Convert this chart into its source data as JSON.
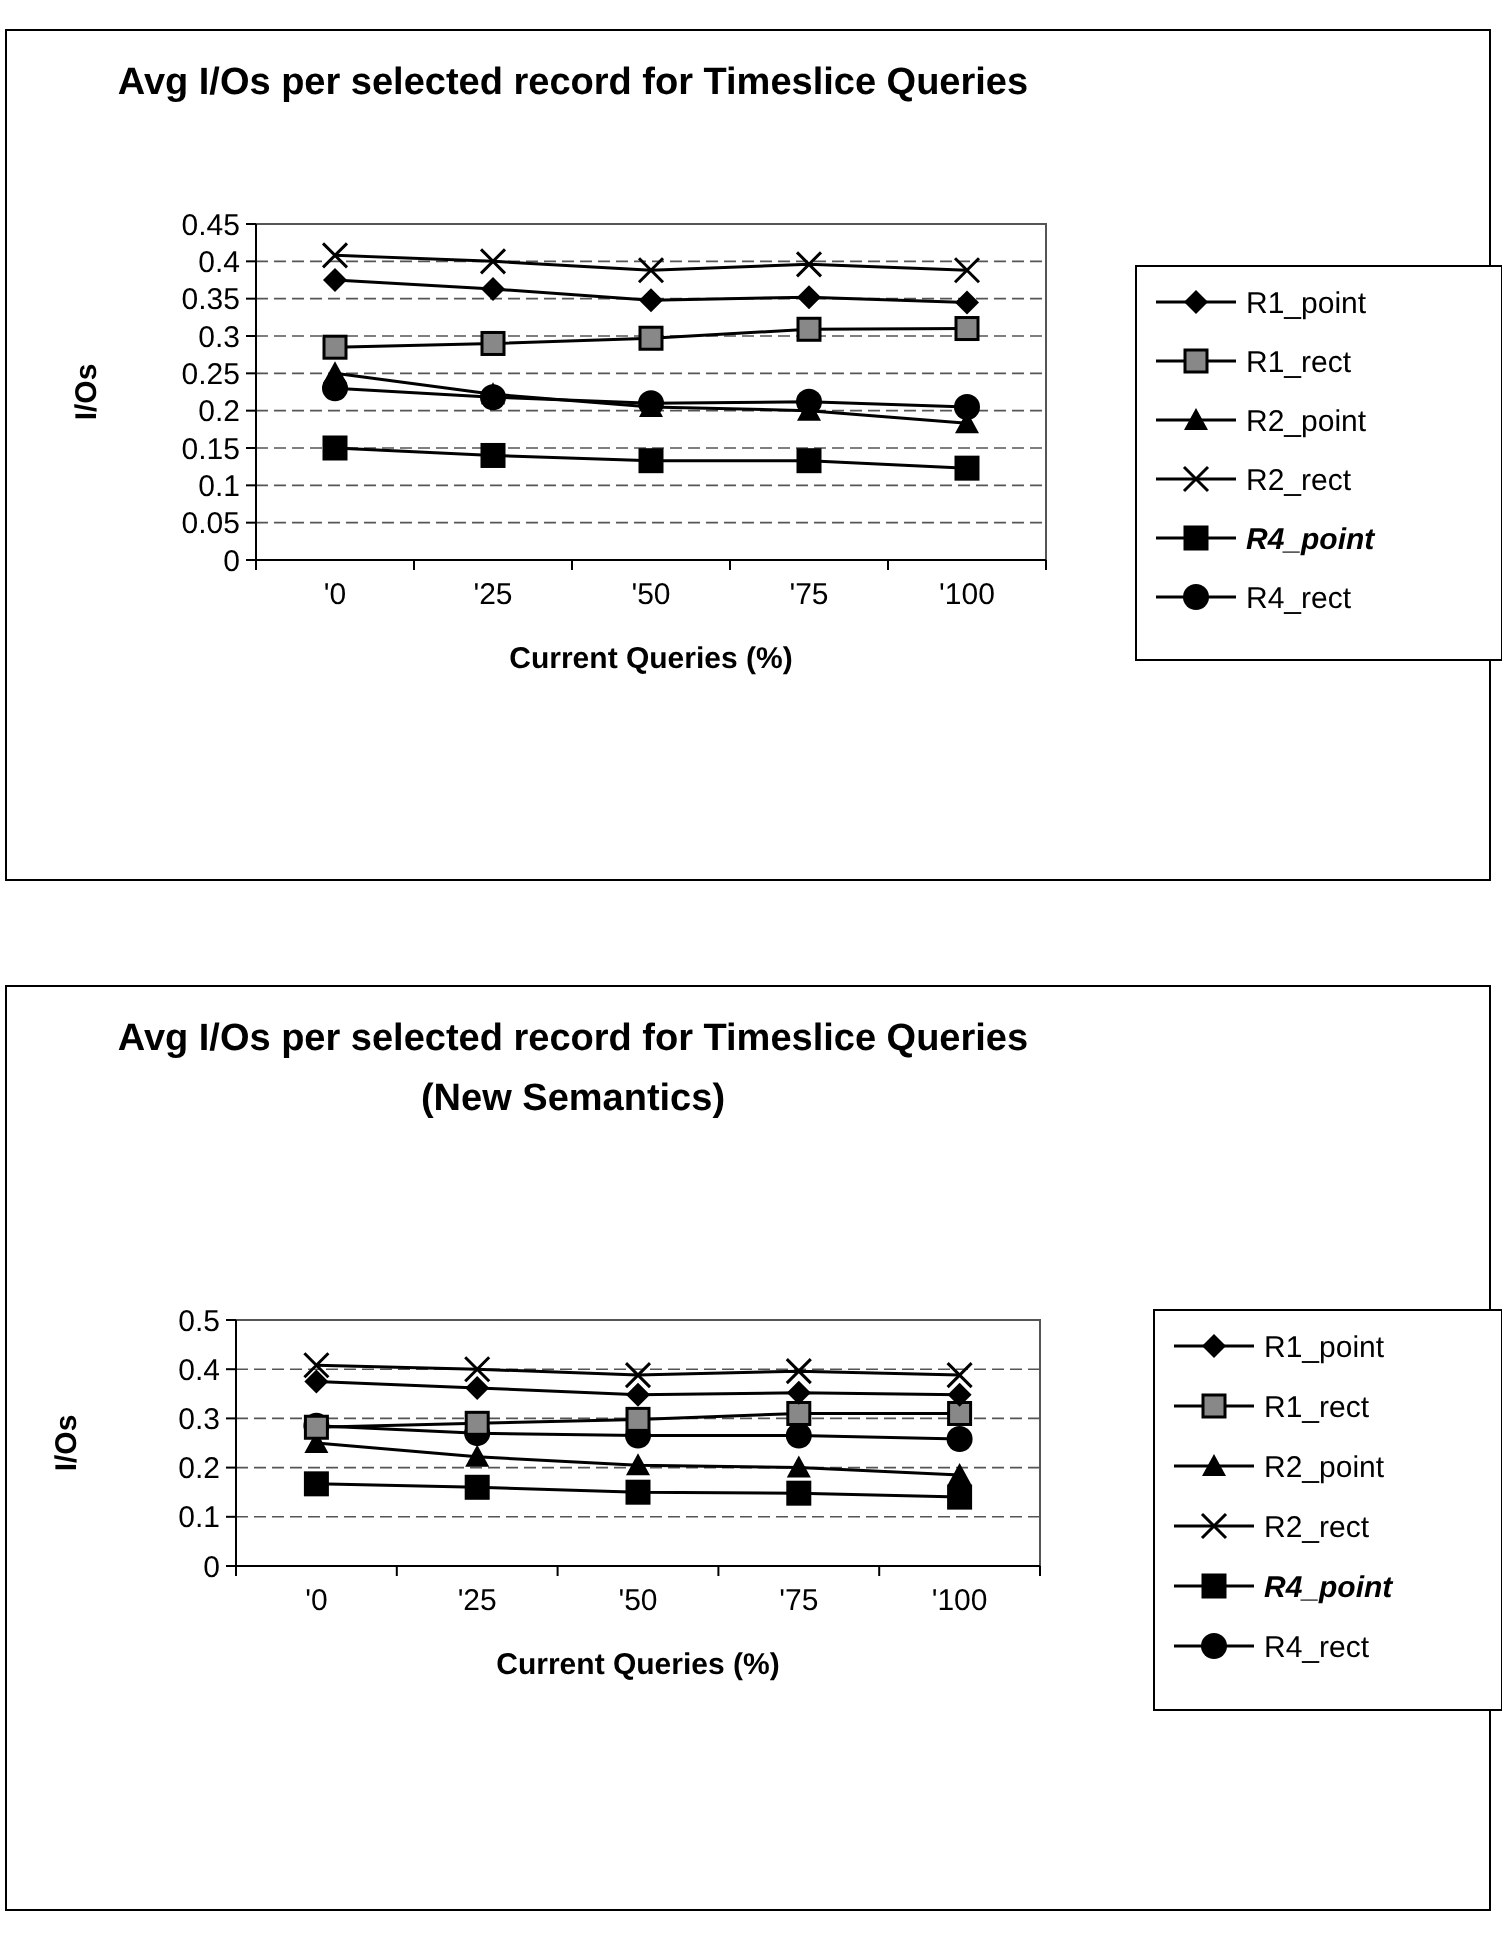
{
  "chart_data": [
    {
      "type": "line",
      "title": "Avg I/Os per selected record for Timeslice Queries",
      "xlabel": "Current Queries (%)",
      "ylabel": "I/Os",
      "categories": [
        "'0",
        "'25",
        "'50",
        "'75",
        "'100"
      ],
      "ylim": [
        0,
        0.45
      ],
      "yticks": [
        0,
        0.05,
        0.1,
        0.15,
        0.2,
        0.25,
        0.3,
        0.35,
        0.4,
        0.45
      ],
      "grid": "y",
      "legend": "right",
      "line_style": "solid",
      "series": [
        {
          "name": "R1_point",
          "color": "#000000",
          "marker": "diamond",
          "values": [
            0.375,
            0.363,
            0.348,
            0.352,
            0.345
          ]
        },
        {
          "name": "R1_rect",
          "color": "#000000",
          "marker": "square",
          "values": [
            0.285,
            0.29,
            0.297,
            0.309,
            0.31
          ]
        },
        {
          "name": "R2_point",
          "color": "#000000",
          "marker": "triangle",
          "values": [
            0.25,
            0.222,
            0.205,
            0.2,
            0.183
          ]
        },
        {
          "name": "R2_rect",
          "color": "#000000",
          "marker": "cross",
          "values": [
            0.408,
            0.4,
            0.388,
            0.396,
            0.388
          ]
        },
        {
          "name": "R4_point",
          "color": "#000000",
          "marker": "square",
          "values": [
            0.15,
            0.14,
            0.133,
            0.133,
            0.123
          ]
        },
        {
          "name": "R4_rect",
          "color": "#000000",
          "marker": "circle",
          "values": [
            0.23,
            0.218,
            0.21,
            0.212,
            0.205
          ]
        }
      ]
    },
    {
      "type": "line",
      "title": "Avg I/Os per selected record for Timeslice Queries (New Semantics)",
      "xlabel": "Current Queries (%)",
      "ylabel": "I/Os",
      "categories": [
        "'0",
        "'25",
        "'50",
        "'75",
        "'100"
      ],
      "ylim": [
        0,
        0.5
      ],
      "yticks": [
        0,
        0.1,
        0.2,
        0.3,
        0.4,
        0.5
      ],
      "grid": "y",
      "legend": "right",
      "line_style": "solid",
      "series": [
        {
          "name": "R1_point",
          "color": "#000000",
          "marker": "diamond",
          "values": [
            0.375,
            0.362,
            0.348,
            0.352,
            0.348
          ]
        },
        {
          "name": "R1_rect",
          "color": "#000000",
          "marker": "square",
          "values": [
            0.282,
            0.29,
            0.298,
            0.31,
            0.31
          ]
        },
        {
          "name": "R2_point",
          "color": "#000000",
          "marker": "triangle",
          "values": [
            0.25,
            0.222,
            0.205,
            0.2,
            0.185
          ]
        },
        {
          "name": "R2_rect",
          "color": "#000000",
          "marker": "cross",
          "values": [
            0.408,
            0.4,
            0.388,
            0.396,
            0.388
          ]
        },
        {
          "name": "R4_point",
          "color": "#000000",
          "marker": "square",
          "values": [
            0.167,
            0.16,
            0.15,
            0.148,
            0.14
          ]
        },
        {
          "name": "R4_rect",
          "color": "#000000",
          "marker": "circle",
          "values": [
            0.285,
            0.27,
            0.265,
            0.265,
            0.258
          ]
        }
      ]
    }
  ]
}
